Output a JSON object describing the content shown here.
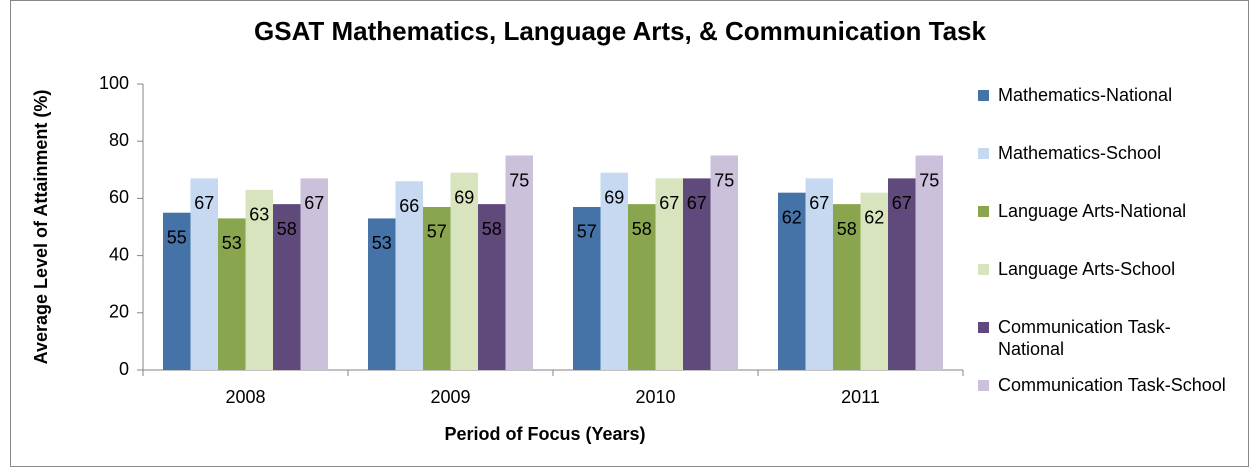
{
  "chart_data": {
    "type": "bar",
    "title": "GSAT Mathematics, Language Arts, & Communication Task",
    "x_label": "Period of Focus (Years)",
    "y_label": "Average Level of Attainment (%)",
    "categories": [
      "2008",
      "2009",
      "2010",
      "2011"
    ],
    "series": [
      {
        "name": "Mathematics-National",
        "color": "#4572a7",
        "values": [
          55,
          53,
          57,
          62
        ]
      },
      {
        "name": "Mathematics-School",
        "color": "#c6d9f1",
        "values": [
          67,
          66,
          69,
          67
        ]
      },
      {
        "name": "Language Arts-National",
        "color": "#89a54e",
        "values": [
          53,
          57,
          58,
          58
        ]
      },
      {
        "name": "Language Arts-School",
        "color": "#d7e4bd",
        "values": [
          63,
          69,
          67,
          62
        ]
      },
      {
        "name": "Communication Task-National",
        "color": "#604a7b",
        "values": [
          58,
          58,
          67,
          67
        ]
      },
      {
        "name": "Communication Task-School",
        "color": "#ccc1da",
        "values": [
          67,
          75,
          75,
          75
        ]
      }
    ],
    "ylim": [
      0,
      100
    ],
    "yticks": [
      0,
      20,
      40,
      60,
      80,
      100
    ],
    "grid": false,
    "legend": "right"
  }
}
